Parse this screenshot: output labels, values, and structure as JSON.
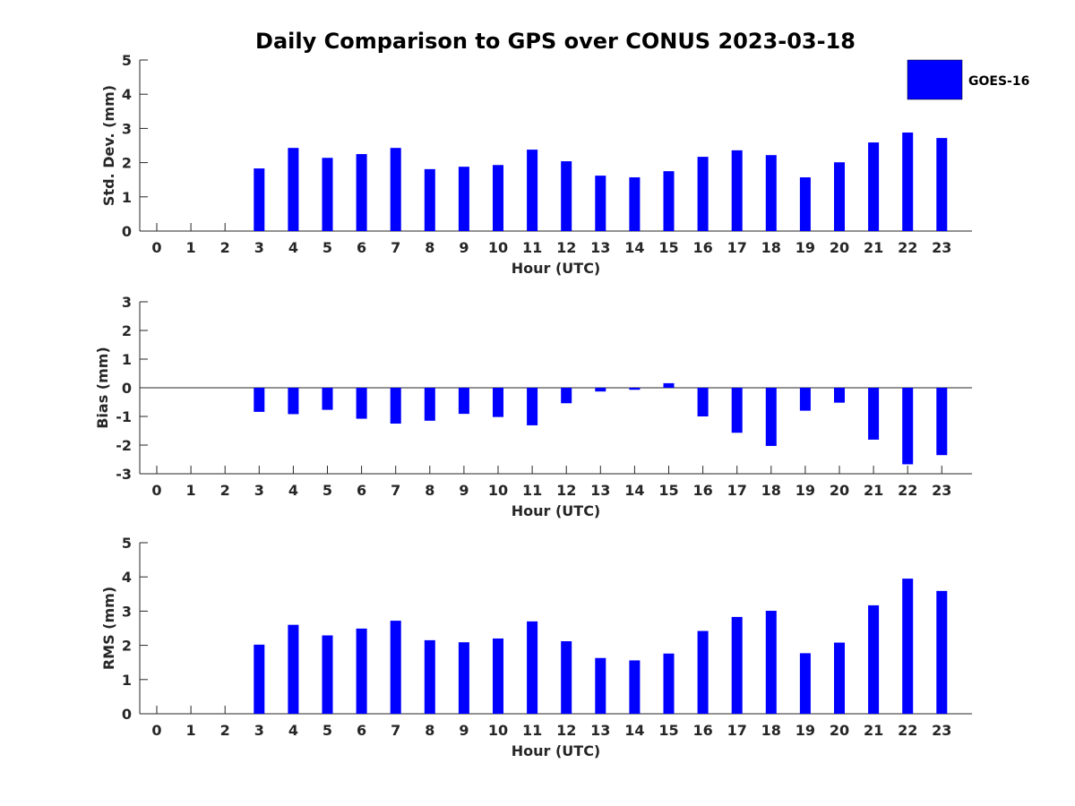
{
  "figure": {
    "title": "Daily Comparison to GPS over CONUS 2023-03-18"
  },
  "legend": {
    "label": "GOES-16",
    "color": "#0000ff",
    "position": "top-right"
  },
  "chart_data": [
    {
      "type": "bar",
      "name": "std_dev",
      "xlabel": "Hour (UTC)",
      "ylabel": "Std. Dev. (mm)",
      "categories": [
        0,
        1,
        2,
        3,
        4,
        5,
        6,
        7,
        8,
        9,
        10,
        11,
        12,
        13,
        14,
        15,
        16,
        17,
        18,
        19,
        20,
        21,
        22,
        23
      ],
      "ylim": [
        0,
        5
      ],
      "yticks": [
        0,
        1,
        2,
        3,
        4,
        5
      ],
      "series": [
        {
          "name": "GOES-16",
          "color": "#0000ff",
          "values": [
            null,
            null,
            null,
            1.83,
            2.43,
            2.14,
            2.25,
            2.43,
            1.81,
            1.88,
            1.93,
            2.38,
            2.04,
            1.62,
            1.57,
            1.75,
            2.17,
            2.36,
            2.22,
            1.57,
            2.01,
            2.59,
            2.88,
            2.72
          ]
        }
      ],
      "grid": false
    },
    {
      "type": "bar",
      "name": "bias",
      "xlabel": "Hour (UTC)",
      "ylabel": "Bias (mm)",
      "categories": [
        0,
        1,
        2,
        3,
        4,
        5,
        6,
        7,
        8,
        9,
        10,
        11,
        12,
        13,
        14,
        15,
        16,
        17,
        18,
        19,
        20,
        21,
        22,
        23
      ],
      "ylim": [
        -3,
        3
      ],
      "yticks": [
        -3,
        -2,
        -1,
        0,
        1,
        2,
        3
      ],
      "series": [
        {
          "name": "GOES-16",
          "color": "#0000ff",
          "values": [
            null,
            null,
            null,
            -0.84,
            -0.92,
            -0.77,
            -1.08,
            -1.25,
            -1.15,
            -0.91,
            -1.02,
            -1.31,
            -0.54,
            -0.13,
            -0.07,
            0.16,
            -1.0,
            -1.57,
            -2.03,
            -0.8,
            -0.52,
            -1.81,
            -2.67,
            -2.35
          ]
        }
      ],
      "zero_line": true,
      "grid": false
    },
    {
      "type": "bar",
      "name": "rms",
      "xlabel": "Hour (UTC)",
      "ylabel": "RMS (mm)",
      "categories": [
        0,
        1,
        2,
        3,
        4,
        5,
        6,
        7,
        8,
        9,
        10,
        11,
        12,
        13,
        14,
        15,
        16,
        17,
        18,
        19,
        20,
        21,
        22,
        23
      ],
      "ylim": [
        0,
        5
      ],
      "yticks": [
        0,
        1,
        2,
        3,
        4,
        5
      ],
      "series": [
        {
          "name": "GOES-16",
          "color": "#0000ff",
          "values": [
            null,
            null,
            null,
            2.02,
            2.6,
            2.29,
            2.49,
            2.72,
            2.15,
            2.09,
            2.2,
            2.7,
            2.12,
            1.63,
            1.56,
            1.76,
            2.42,
            2.83,
            3.01,
            1.77,
            2.08,
            3.17,
            3.95,
            3.59
          ]
        }
      ],
      "grid": false
    }
  ]
}
